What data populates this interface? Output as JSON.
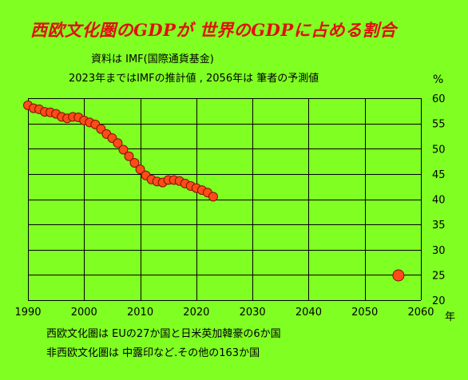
{
  "title": "西欧文化圏のGDPが 世界のGDPに占める割合",
  "source_line1": "資料は IMF(国際通貨基金)",
  "source_line2": "2023年まではIMFの推計値 , 2056年は 筆者の予測値",
  "unit_label": "%",
  "x_unit_label": "年",
  "footnote1": "西欧文化圏は EUの27か国と日米英加韓豪の6か国",
  "footnote2": "非西欧文化圏は 中露印など.その他の163か国",
  "colors": {
    "background": "#80ff22",
    "marker_fill": "#ff4a1a",
    "marker_stroke": "#7a1400",
    "title": "#e01010",
    "grid": "#000000"
  },
  "chart_data": {
    "type": "scatter",
    "x_ticks": [
      1990,
      2000,
      2010,
      2020,
      2030,
      2040,
      2050,
      2060
    ],
    "y_ticks": [
      20,
      25,
      30,
      35,
      40,
      45,
      50,
      55,
      60
    ],
    "xlim": [
      1990,
      2060
    ],
    "ylim": [
      20,
      60
    ],
    "grid": true,
    "y_axis_side": "right",
    "series": [
      {
        "x": [
          1990,
          1991,
          1992,
          1993,
          1994,
          1995,
          1996,
          1997,
          1998,
          1999,
          2000,
          2001,
          2002,
          2003,
          2004,
          2005,
          2006,
          2007,
          2008,
          2009,
          2010,
          2011,
          2012,
          2013,
          2014,
          2015,
          2016,
          2017,
          2018,
          2019,
          2020,
          2021,
          2022,
          2023
        ],
        "y": [
          58.6,
          58.0,
          57.8,
          57.3,
          57.2,
          56.9,
          56.3,
          56.0,
          56.3,
          56.2,
          55.6,
          55.2,
          54.8,
          53.9,
          52.9,
          52.1,
          51.1,
          49.8,
          48.5,
          47.2,
          45.9,
          44.7,
          43.9,
          43.5,
          43.3,
          43.8,
          43.8,
          43.6,
          43.1,
          42.6,
          42.2,
          41.8,
          41.3,
          40.5
        ]
      },
      {
        "x": [
          2056
        ],
        "y": [
          24.9
        ]
      }
    ]
  }
}
